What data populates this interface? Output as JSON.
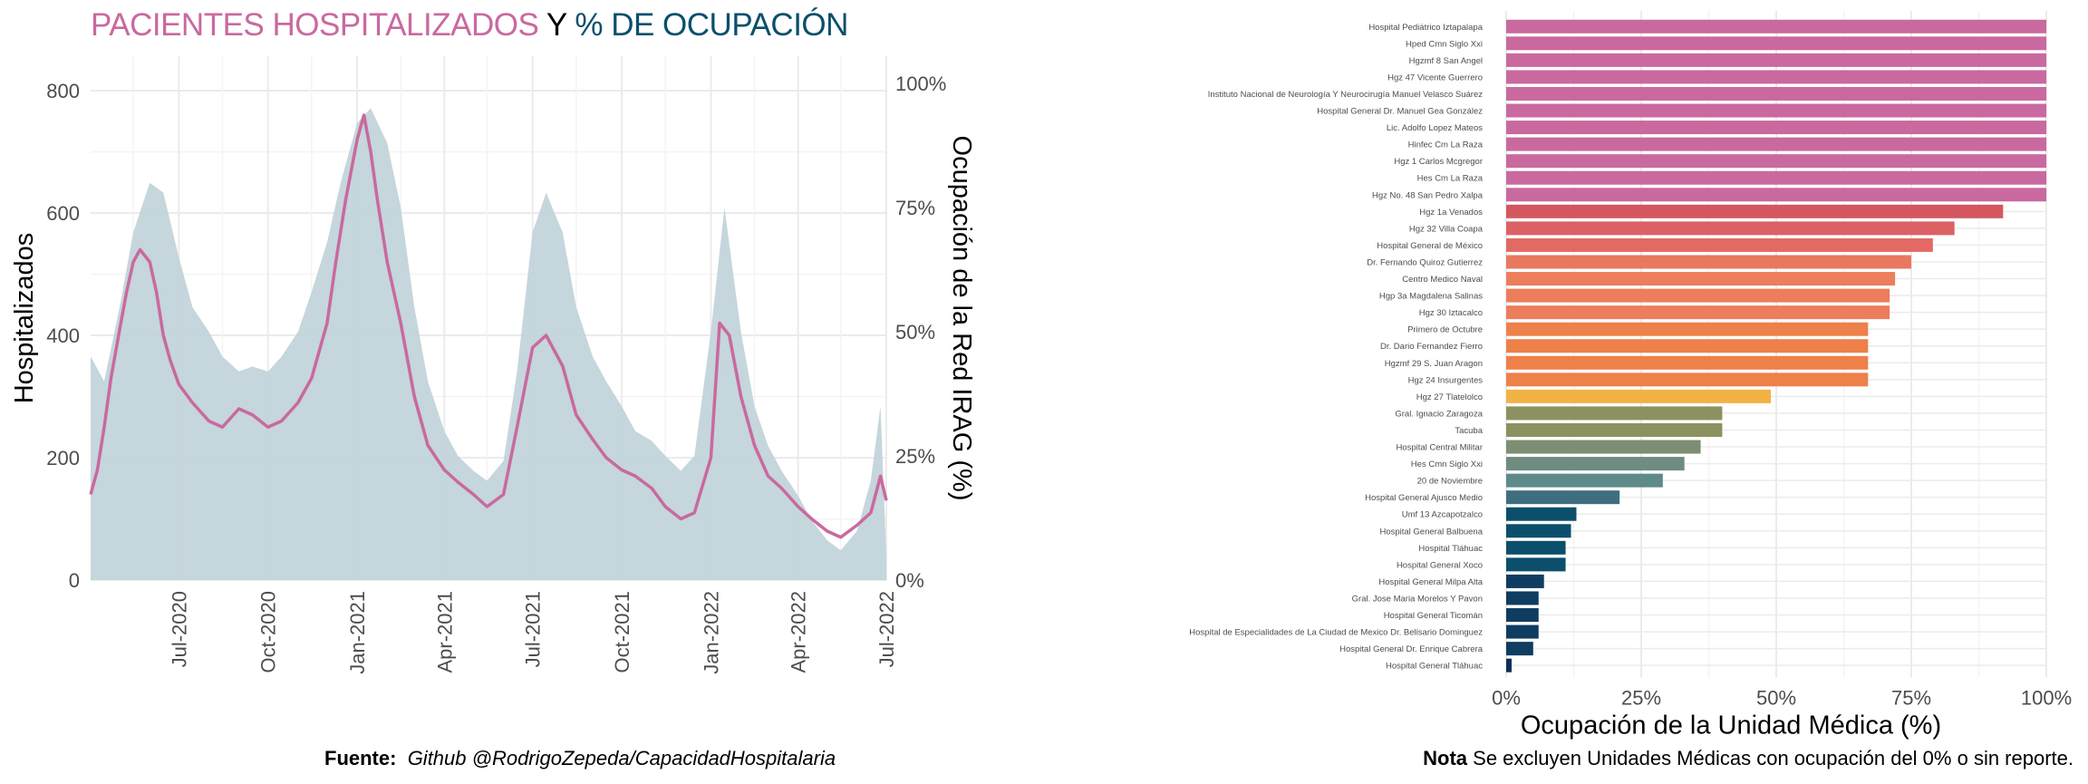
{
  "title": {
    "part1": "PACIENTES HOSPITALIZADOS",
    "part2": "Y",
    "part3": "% DE OCUPACIÓN"
  },
  "footer": {
    "source_label": "Fuente:",
    "source_text": "Github @RodrigoZepeda/CapacidadHospitalaria",
    "note_label": "Nota",
    "note_text": "Se excluyen Unidades Médicas con ocupación del 0% o sin reporte."
  },
  "colors": {
    "line": "#c9699f",
    "area": "#c2d4da",
    "grid": "#ebebeb"
  },
  "chart_data": [
    {
      "type": "line",
      "title": "",
      "ylabel": "Hospitalizados",
      "y2label": "Ocupación de la Red IRAG (%)",
      "ylim": [
        0,
        800
      ],
      "y2lim": [
        0,
        100
      ],
      "yticks": [
        "0",
        "200",
        "400",
        "600",
        "800"
      ],
      "y2ticks": [
        "0%",
        "25%",
        "50%",
        "75%",
        "100%"
      ],
      "xticks": [
        "Jul-2020",
        "Oct-2020",
        "Jan-2021",
        "Apr-2021",
        "Jul-2021",
        "Oct-2021",
        "Jan-2022",
        "Apr-2022",
        "Jul-2022"
      ],
      "series": [
        {
          "name": "Hospitalizados",
          "x": [
            "2020-04-01",
            "2020-04-08",
            "2020-04-15",
            "2020-04-22",
            "2020-05-01",
            "2020-05-08",
            "2020-05-15",
            "2020-05-22",
            "2020-06-01",
            "2020-06-08",
            "2020-06-15",
            "2020-06-22",
            "2020-07-01",
            "2020-07-15",
            "2020-08-01",
            "2020-08-15",
            "2020-09-01",
            "2020-09-15",
            "2020-10-01",
            "2020-10-15",
            "2020-11-01",
            "2020-11-15",
            "2020-12-01",
            "2020-12-10",
            "2020-12-20",
            "2021-01-01",
            "2021-01-08",
            "2021-01-15",
            "2021-01-22",
            "2021-02-01",
            "2021-02-15",
            "2021-03-01",
            "2021-03-15",
            "2021-04-01",
            "2021-04-15",
            "2021-05-01",
            "2021-05-15",
            "2021-06-01",
            "2021-06-15",
            "2021-07-01",
            "2021-07-15",
            "2021-08-01",
            "2021-08-15",
            "2021-09-01",
            "2021-09-15",
            "2021-10-01",
            "2021-10-15",
            "2021-11-01",
            "2021-11-15",
            "2021-12-01",
            "2021-12-15",
            "2022-01-01",
            "2022-01-10",
            "2022-01-20",
            "2022-02-01",
            "2022-02-15",
            "2022-03-01",
            "2022-03-15",
            "2022-04-01",
            "2022-04-15",
            "2022-05-01",
            "2022-05-15",
            "2022-06-01",
            "2022-06-15",
            "2022-06-25",
            "2022-07-01"
          ],
          "values": [
            140,
            180,
            250,
            330,
            410,
            470,
            520,
            540,
            520,
            470,
            400,
            360,
            320,
            290,
            260,
            250,
            280,
            270,
            250,
            260,
            290,
            330,
            420,
            520,
            620,
            720,
            760,
            700,
            620,
            520,
            420,
            300,
            220,
            180,
            160,
            140,
            120,
            140,
            250,
            380,
            400,
            350,
            270,
            230,
            200,
            180,
            170,
            150,
            120,
            100,
            110,
            200,
            420,
            400,
            300,
            220,
            170,
            150,
            120,
            100,
            80,
            70,
            90,
            110,
            170,
            130
          ]
        },
        {
          "name": "Ocupación de la Red IRAG (%)",
          "x": [
            "2020-04-01",
            "2020-04-15",
            "2020-05-01",
            "2020-05-15",
            "2020-06-01",
            "2020-06-15",
            "2020-07-01",
            "2020-07-15",
            "2020-08-01",
            "2020-08-15",
            "2020-09-01",
            "2020-09-15",
            "2020-10-01",
            "2020-10-15",
            "2020-11-01",
            "2020-11-15",
            "2020-12-01",
            "2020-12-15",
            "2021-01-01",
            "2021-01-15",
            "2021-02-01",
            "2021-02-15",
            "2021-03-01",
            "2021-03-15",
            "2021-04-01",
            "2021-04-15",
            "2021-05-01",
            "2021-05-15",
            "2021-06-01",
            "2021-06-15",
            "2021-07-01",
            "2021-07-15",
            "2021-08-01",
            "2021-08-15",
            "2021-09-01",
            "2021-09-15",
            "2021-10-01",
            "2021-10-15",
            "2021-11-01",
            "2021-11-15",
            "2021-12-01",
            "2021-12-15",
            "2022-01-01",
            "2022-01-15",
            "2022-02-01",
            "2022-02-15",
            "2022-03-01",
            "2022-03-15",
            "2022-04-01",
            "2022-04-15",
            "2022-05-01",
            "2022-05-15",
            "2022-06-01",
            "2022-06-15",
            "2022-06-25",
            "2022-07-01"
          ],
          "values": [
            45,
            40,
            55,
            70,
            80,
            78,
            65,
            55,
            50,
            45,
            42,
            43,
            42,
            45,
            50,
            58,
            68,
            80,
            92,
            95,
            88,
            75,
            55,
            40,
            30,
            25,
            22,
            20,
            24,
            42,
            70,
            78,
            70,
            55,
            45,
            40,
            35,
            30,
            28,
            25,
            22,
            25,
            50,
            75,
            50,
            35,
            27,
            22,
            17,
            12,
            8,
            6,
            10,
            20,
            35,
            5
          ]
        }
      ]
    },
    {
      "type": "bar",
      "orientation": "horizontal",
      "xlabel": "Ocupación de la Unidad Médica (%)",
      "xlim": [
        0,
        100
      ],
      "xticks": [
        "0%",
        "25%",
        "50%",
        "75%",
        "100%"
      ],
      "categories": [
        "Hospital Pediátrico Iztapalapa",
        "Hped Cmn Siglo Xxi",
        "Hgzmf 8 San Angel",
        "Hgz 47 Vicente Guerrero",
        "Instituto Nacional de Neurología Y Neurocirugía Manuel Velasco Suárez",
        "Hospital General Dr. Manuel Gea González",
        "Lic. Adolfo Lopez Mateos",
        "Hinfec Cm La Raza",
        "Hgz 1 Carlos Mcgregor",
        "Hes Cm La Raza",
        "Hgz No. 48 San Pedro Xalpa",
        "Hgz 1a Venados",
        "Hgz 32 Villa Coapa",
        "Hospital General de México",
        "Dr. Fernando Quiroz Gutierrez",
        "Centro Medico Naval",
        "Hgp 3a Magdalena Salinas",
        "Hgz 30 Iztacalco",
        "Primero de Octubre",
        "Dr. Dario Fernandez Fierro",
        "Hgzmf 29 S. Juan Aragon",
        "Hgz 24 Insurgentes",
        "Hgz 27 Tlatelolco",
        "Gral. Ignacio Zaragoza",
        "Tacuba",
        "Hospital Central Militar",
        "Hes Cmn Siglo Xxi",
        "20 de Noviembre",
        "Hospital General Ajusco Medio",
        "Umf 13 Azcapotzalco",
        "Hospital General Balbuena",
        "Hospital Tláhuac",
        "Hospital General Xoco",
        "Hospital General Milpa Alta",
        "Gral. Jose Maria Morelos Y Pavon",
        "Hospital General Ticomán",
        "Hospital de Especialidades de La Ciudad de Mexico Dr. Belisario Dominguez",
        "Hospital General Dr. Enrique Cabrera",
        "Hospital General Tláhuac"
      ],
      "values": [
        100,
        100,
        100,
        100,
        100,
        100,
        100,
        100,
        100,
        100,
        100,
        92,
        83,
        79,
        75,
        72,
        71,
        71,
        67,
        67,
        67,
        67,
        49,
        40,
        40,
        36,
        33,
        29,
        21,
        13,
        12,
        11,
        11,
        7,
        6,
        6,
        6,
        5,
        1
      ],
      "colors": [
        "#c9699f",
        "#c9699f",
        "#c9699f",
        "#c9699f",
        "#c9699f",
        "#c9699f",
        "#c9699f",
        "#c9699f",
        "#c9699f",
        "#c9699f",
        "#c9699f",
        "#d4575f",
        "#dd6065",
        "#e26a63",
        "#e9785f",
        "#ec7e5c",
        "#ec7e5c",
        "#ec7e5c",
        "#ee8049",
        "#ee8049",
        "#ee8049",
        "#ee8049",
        "#f2b244",
        "#8c915f",
        "#8c915f",
        "#7d8e72",
        "#6e8c80",
        "#5e8a89",
        "#3e6e80",
        "#0b4f6c",
        "#0b4f6c",
        "#0b4f6c",
        "#0b4f6c",
        "#0e3d61",
        "#0e3d61",
        "#0e3d61",
        "#0e3d61",
        "#0e3d61",
        "#102d55"
      ]
    }
  ]
}
